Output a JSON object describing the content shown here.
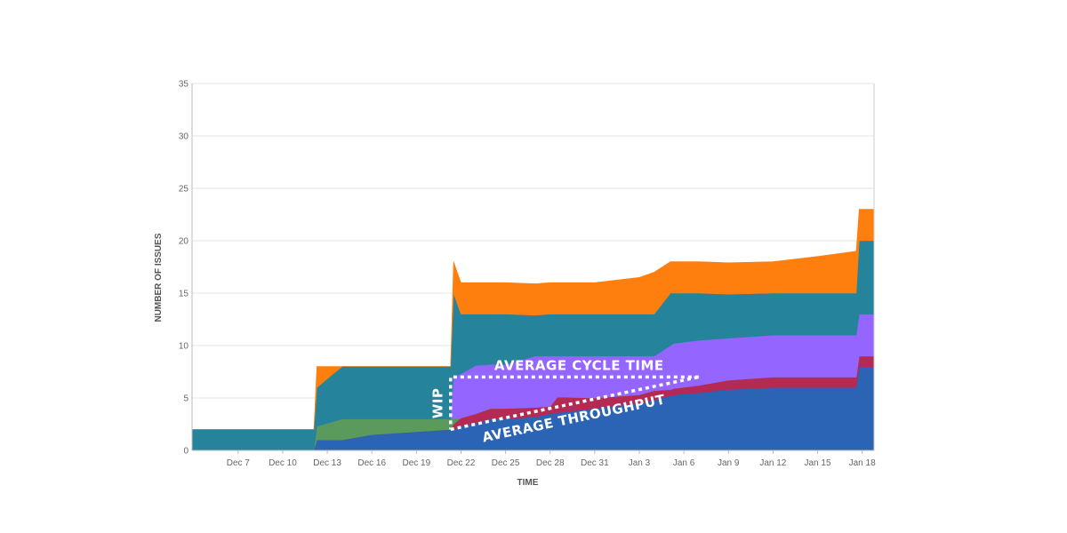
{
  "chart_data": {
    "type": "area",
    "stacked": true,
    "title": "",
    "xlabel": "TIME",
    "ylabel": "NUMBER OF ISSUES",
    "ylim": [
      0,
      35
    ],
    "yticks": [
      0,
      5,
      10,
      15,
      20,
      25,
      30,
      35
    ],
    "xlim": [
      3.9,
      49.8
    ],
    "xtick_labels": [
      "Dec 7",
      "Dec 10",
      "Dec 13",
      "Dec 16",
      "Dec 19",
      "Dec 22",
      "Dec 25",
      "Dec 28",
      "Dec 31",
      "Jan 3",
      "Jan 6",
      "Jan 9",
      "Jan 12",
      "Jan 15",
      "Jan 18"
    ],
    "xtick_values": [
      7,
      10,
      13,
      16,
      19,
      22,
      25,
      28,
      31,
      34,
      37,
      40,
      43,
      46,
      49
    ],
    "grid": "horizontal",
    "colors": {
      "blue": "#2b63b5",
      "crimson": "#b52a55",
      "green": "#5a9a5c",
      "purple": "#9466ff",
      "teal": "#25839c",
      "orange": "#ff7f0e",
      "annotation": "#ffffff"
    },
    "series_x": [
      3.9,
      12.1,
      12.3,
      14.0,
      16.0,
      21.3,
      21.5,
      22.0,
      23.0,
      24.0,
      25.0,
      27.0,
      28.0,
      28.5,
      31.0,
      34.0,
      35.0,
      36.1,
      36.3,
      38.0,
      40.0,
      43.0,
      46.0,
      48.6,
      48.8,
      49.8
    ],
    "series": [
      {
        "key": "blue",
        "values": [
          0,
          0,
          1,
          1,
          1.5,
          2.0,
          2.0,
          2.3,
          2.6,
          3.0,
          3.0,
          3.2,
          3.5,
          3.6,
          4.0,
          4.5,
          4.8,
          5.2,
          5.3,
          5.5,
          5.8,
          6.0,
          6.0,
          6.0,
          8.0,
          8.0
        ]
      },
      {
        "key": "crimson",
        "values": [
          0,
          0,
          0,
          0,
          0,
          0,
          0.5,
          0.8,
          0.9,
          1.0,
          1.0,
          0.9,
          0.7,
          1.5,
          1.0,
          0.8,
          0.9,
          0.6,
          0.6,
          0.7,
          0.9,
          1.0,
          1.0,
          1.0,
          1.0,
          1.0
        ]
      },
      {
        "key": "green",
        "values": [
          0,
          0,
          1.3,
          2.0,
          1.5,
          1.0,
          0.5,
          0,
          0,
          0,
          0,
          0,
          0,
          0,
          0,
          0,
          0,
          0,
          0,
          0,
          0,
          0,
          0,
          0,
          0,
          0
        ]
      },
      {
        "key": "purple",
        "values": [
          0,
          0,
          0,
          0,
          0,
          0,
          4.0,
          4.2,
          4.6,
          4.2,
          4.2,
          4.9,
          4.8,
          3.9,
          4.0,
          3.7,
          3.3,
          4.2,
          4.3,
          4.3,
          4.0,
          4.0,
          4.0,
          4.0,
          4.0,
          4.0
        ]
      },
      {
        "key": "teal",
        "values": [
          2,
          2,
          3.7,
          5.0,
          5.0,
          5.0,
          8.0,
          5.7,
          4.9,
          4.8,
          4.8,
          3.9,
          4.0,
          4.0,
          4.0,
          4.0,
          4.0,
          5.0,
          4.8,
          4.5,
          4.2,
          4.0,
          4.0,
          4.0,
          7.0,
          7.0
        ]
      },
      {
        "key": "orange",
        "values": [
          0,
          0,
          2.0,
          0,
          0,
          0,
          3.0,
          3.0,
          3.0,
          3.0,
          3.0,
          3.0,
          3.0,
          3.0,
          3.0,
          3.5,
          4.0,
          3.0,
          3.0,
          3.0,
          3.0,
          3.0,
          3.5,
          4.0,
          3.0,
          3.0
        ]
      }
    ],
    "annotations": {
      "cycle_time_label": "AVERAGE CYCLE TIME",
      "wip_label": "WIP",
      "throughput_label": "AVERAGE THROUGHPUT",
      "wip_box": {
        "x_start": 21.3,
        "x_end": 38.0,
        "y_bottom": 2.0,
        "y_top": 7.0
      }
    }
  }
}
